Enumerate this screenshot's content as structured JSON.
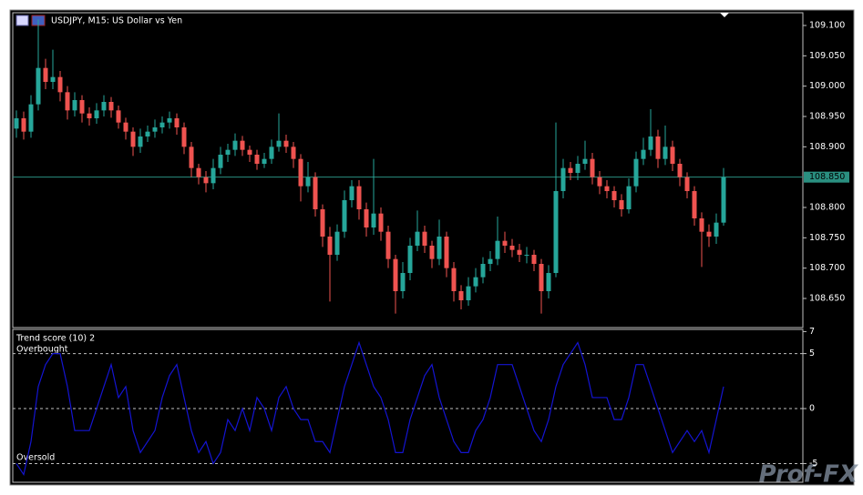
{
  "chart_data": [
    {
      "type": "candlestick",
      "title": "USDJPY, M15:  US Dollar vs Yen",
      "up_color": "#26a69a",
      "down_color": "#ef5350",
      "open": [
        108.93,
        108.947,
        108.925,
        108.97,
        109.03,
        109.007,
        109.015,
        108.99,
        108.96,
        108.977,
        108.955,
        108.947,
        108.96,
        108.974,
        108.96,
        108.94,
        108.925,
        108.9,
        108.917,
        108.925,
        108.932,
        108.94,
        108.947,
        108.932,
        108.9,
        108.865,
        108.85,
        108.84,
        108.865,
        108.887,
        108.895,
        108.91,
        108.895,
        108.887,
        108.872,
        108.88,
        108.9,
        108.91,
        108.9,
        108.88,
        108.835,
        108.85,
        108.797,
        108.752,
        108.722,
        108.76,
        108.812,
        108.835,
        108.797,
        108.767,
        108.79,
        108.76,
        108.715,
        108.662,
        108.692,
        108.737,
        108.76,
        108.737,
        108.715,
        108.752,
        108.7,
        108.662,
        108.647,
        108.67,
        108.685,
        108.707,
        108.715,
        108.745,
        108.737,
        108.73,
        108.722,
        108.722,
        108.707,
        108.662,
        108.692,
        108.827,
        108.865,
        108.857,
        108.872,
        108.88,
        108.85,
        108.835,
        108.827,
        108.812,
        108.797,
        108.835,
        108.88,
        108.895,
        108.917,
        108.88,
        108.9,
        108.872,
        108.85,
        108.827,
        108.782,
        108.76,
        108.752,
        108.775
      ],
      "high": [
        108.96,
        108.958,
        108.985,
        109.11,
        109.045,
        109.06,
        109.025,
        109.0,
        108.99,
        108.985,
        108.965,
        108.972,
        108.985,
        108.982,
        108.968,
        108.948,
        108.932,
        108.93,
        108.935,
        108.945,
        108.95,
        108.958,
        108.955,
        108.94,
        108.908,
        108.872,
        108.86,
        108.88,
        108.9,
        108.905,
        108.922,
        108.918,
        108.902,
        108.895,
        108.89,
        108.912,
        108.955,
        108.92,
        108.908,
        108.888,
        108.875,
        108.858,
        108.805,
        108.768,
        108.772,
        108.828,
        108.845,
        108.845,
        108.808,
        108.88,
        108.8,
        108.77,
        108.722,
        108.71,
        108.75,
        108.795,
        108.77,
        108.745,
        108.78,
        108.76,
        108.71,
        108.672,
        108.685,
        108.7,
        108.718,
        108.728,
        108.785,
        108.76,
        108.748,
        108.74,
        108.735,
        108.73,
        108.715,
        108.705,
        108.94,
        108.88,
        108.875,
        108.885,
        108.91,
        108.89,
        108.86,
        108.845,
        108.835,
        108.822,
        108.848,
        108.892,
        108.915,
        108.962,
        108.928,
        108.935,
        108.91,
        108.88,
        108.858,
        108.835,
        108.792,
        108.772,
        108.79,
        108.865
      ],
      "low": [
        108.915,
        108.912,
        108.915,
        108.96,
        108.995,
        108.995,
        108.975,
        108.945,
        108.95,
        108.94,
        108.935,
        108.938,
        108.95,
        108.948,
        108.93,
        108.912,
        108.885,
        108.89,
        108.908,
        108.915,
        108.922,
        108.93,
        108.92,
        108.888,
        108.85,
        108.838,
        108.825,
        108.83,
        108.855,
        108.875,
        108.885,
        108.885,
        108.875,
        108.862,
        108.865,
        108.872,
        108.892,
        108.89,
        108.865,
        108.81,
        108.825,
        108.785,
        108.735,
        108.645,
        108.712,
        108.75,
        108.8,
        108.78,
        108.752,
        108.755,
        108.745,
        108.7,
        108.625,
        108.65,
        108.68,
        108.728,
        108.725,
        108.7,
        108.705,
        108.685,
        108.645,
        108.632,
        108.638,
        108.66,
        108.675,
        108.695,
        108.705,
        108.725,
        108.718,
        108.71,
        108.708,
        108.695,
        108.625,
        108.65,
        108.685,
        108.815,
        108.845,
        108.845,
        108.862,
        108.838,
        108.822,
        108.815,
        108.8,
        108.785,
        108.79,
        108.825,
        108.87,
        108.885,
        108.865,
        108.87,
        108.86,
        108.835,
        108.815,
        108.77,
        108.702,
        108.735,
        108.74,
        108.77
      ],
      "close": [
        108.947,
        108.925,
        108.97,
        109.03,
        109.007,
        109.015,
        108.99,
        108.96,
        108.977,
        108.955,
        108.947,
        108.96,
        108.974,
        108.96,
        108.94,
        108.925,
        108.9,
        108.917,
        108.925,
        108.932,
        108.94,
        108.947,
        108.932,
        108.9,
        108.865,
        108.85,
        108.84,
        108.865,
        108.887,
        108.895,
        108.91,
        108.895,
        108.887,
        108.872,
        108.88,
        108.9,
        108.91,
        108.9,
        108.88,
        108.835,
        108.85,
        108.797,
        108.752,
        108.722,
        108.76,
        108.812,
        108.835,
        108.797,
        108.767,
        108.79,
        108.76,
        108.715,
        108.662,
        108.692,
        108.737,
        108.76,
        108.737,
        108.715,
        108.752,
        108.7,
        108.662,
        108.647,
        108.67,
        108.685,
        108.707,
        108.715,
        108.745,
        108.737,
        108.73,
        108.722,
        108.722,
        108.707,
        108.662,
        108.692,
        108.827,
        108.865,
        108.857,
        108.872,
        108.88,
        108.85,
        108.835,
        108.827,
        108.812,
        108.797,
        108.835,
        108.88,
        108.895,
        108.917,
        108.88,
        108.9,
        108.872,
        108.85,
        108.827,
        108.782,
        108.76,
        108.752,
        108.775,
        108.85
      ],
      "ylim": [
        108.602,
        109.121
      ],
      "yticks": [
        {
          "value": 108.65,
          "label": "108.650"
        },
        {
          "value": 108.7,
          "label": "108.700"
        },
        {
          "value": 108.75,
          "label": "108.750"
        },
        {
          "value": 108.8,
          "label": "108.800"
        },
        {
          "value": 108.9,
          "label": "108.900"
        },
        {
          "value": 108.95,
          "label": "108.950"
        },
        {
          "value": 109.0,
          "label": "109.000"
        },
        {
          "value": 109.05,
          "label": "109.050"
        },
        {
          "value": 109.1,
          "label": "109.100"
        }
      ],
      "price_line": {
        "value": 108.85,
        "label": "108.850",
        "color": "#2a8f80"
      }
    },
    {
      "type": "line",
      "title": "Trend score (10) 2",
      "annotations": [
        "Overbought",
        "Oversold"
      ],
      "color": "#1414d2",
      "values": [
        -5,
        -6,
        -3,
        2,
        4,
        5,
        5,
        2,
        -2,
        -2,
        -2,
        0,
        2,
        4,
        1,
        2,
        -2,
        -4,
        -3,
        -2,
        1,
        3,
        4,
        1,
        -2,
        -4,
        -3,
        -5,
        -4,
        -1,
        -2,
        0,
        -2,
        1,
        0,
        -2,
        1,
        2,
        0,
        -1,
        -1,
        -3,
        -3,
        -4,
        -1,
        2,
        4,
        6,
        4,
        2,
        1,
        -1,
        -4,
        -4,
        -1,
        1,
        3,
        4,
        1,
        -1,
        -3,
        -4,
        -4,
        -2,
        -1,
        1,
        4,
        4,
        4,
        2,
        0,
        -2,
        -3,
        -1,
        2,
        4,
        5,
        6,
        4,
        1,
        1,
        1,
        -1,
        -1,
        1,
        4,
        4,
        2,
        0,
        -2,
        -4,
        -3,
        -2,
        -3,
        -2,
        -4,
        -1,
        2
      ],
      "ylim": [
        -6.7,
        7.2
      ],
      "yticks": [
        7,
        5,
        0,
        -5
      ],
      "levels": [
        5,
        0,
        -5
      ]
    },
    {
      "watermark": "Prof-FX"
    }
  ]
}
